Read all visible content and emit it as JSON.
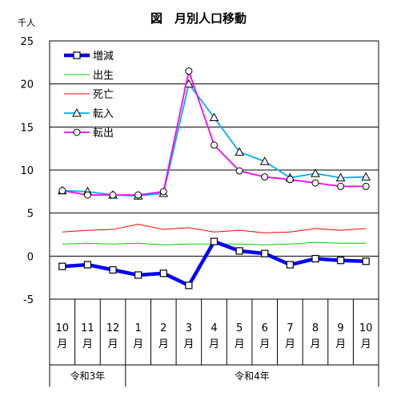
{
  "chart_data": {
    "type": "line",
    "title": "図　月別人口移動",
    "unit_label": "千人",
    "xlabel": "",
    "ylabel": "",
    "ylim": [
      -5,
      25
    ],
    "yticks": [
      -5,
      0,
      5,
      10,
      15,
      20,
      25
    ],
    "grid": true,
    "legend_position": "top-left",
    "categories": [
      {
        "month": "10",
        "unit": "月"
      },
      {
        "month": "11",
        "unit": "月"
      },
      {
        "month": "12",
        "unit": "月"
      },
      {
        "month": "1",
        "unit": "月"
      },
      {
        "month": "2",
        "unit": "月"
      },
      {
        "month": "3",
        "unit": "月"
      },
      {
        "month": "4",
        "unit": "月"
      },
      {
        "month": "5",
        "unit": "月"
      },
      {
        "month": "6",
        "unit": "月"
      },
      {
        "month": "7",
        "unit": "月"
      },
      {
        "month": "8",
        "unit": "月"
      },
      {
        "month": "9",
        "unit": "月"
      },
      {
        "month": "10",
        "unit": "月"
      }
    ],
    "year_groups": [
      {
        "label": "令和3年",
        "count": 3
      },
      {
        "label": "令和4年",
        "count": 10
      }
    ],
    "series": [
      {
        "name": "増減",
        "color": "#0000ff",
        "marker": "square",
        "values": [
          -1.2,
          -1.0,
          -1.6,
          -2.2,
          -2.0,
          -3.4,
          1.7,
          0.6,
          0.3,
          -1.0,
          -0.3,
          -0.5,
          -0.6
        ]
      },
      {
        "name": "出生",
        "color": "#00cc00",
        "marker": "none",
        "values": [
          1.4,
          1.5,
          1.4,
          1.5,
          1.3,
          1.4,
          1.4,
          1.4,
          1.3,
          1.4,
          1.6,
          1.5,
          1.5
        ]
      },
      {
        "name": "死亡",
        "color": "#ff0000",
        "marker": "none",
        "values": [
          2.8,
          3.0,
          3.1,
          3.7,
          3.1,
          3.3,
          2.8,
          3.0,
          2.7,
          2.8,
          3.2,
          3.0,
          3.2
        ]
      },
      {
        "name": "転入",
        "color": "#00b0f0",
        "marker": "triangle",
        "values": [
          7.6,
          7.5,
          7.1,
          7.0,
          7.3,
          20.0,
          16.1,
          12.1,
          11.0,
          9.1,
          9.6,
          9.1,
          9.2
        ]
      },
      {
        "name": "転出",
        "color": "#ff00ff",
        "marker": "circle",
        "values": [
          7.6,
          7.1,
          7.1,
          7.1,
          7.5,
          21.5,
          12.9,
          9.9,
          9.2,
          8.9,
          8.5,
          8.1,
          8.1
        ]
      }
    ]
  }
}
